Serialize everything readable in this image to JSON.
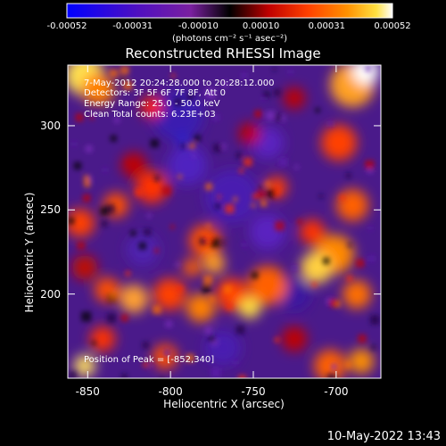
{
  "chart_data": {
    "type": "heatmap",
    "title": "Reconstructed RHESSI Image",
    "xlabel": "Heliocentric X (arcsec)",
    "ylabel": "Heliocentric Y (arcsec)",
    "xlim": [
      -862,
      -673
    ],
    "ylim": [
      150,
      336
    ],
    "x_ticks": [
      "-850",
      "-800",
      "-750",
      "-700"
    ],
    "x_tick_values": [
      -850,
      -800,
      -750,
      -700
    ],
    "y_ticks": [
      "200",
      "250",
      "300"
    ],
    "y_tick_values": [
      200,
      250,
      300
    ],
    "colorbar": {
      "min": -0.00052,
      "max": 0.00052,
      "tick_labels": [
        "-0.00052",
        "-0.00031",
        "-0.00010",
        "0.00010",
        "0.00031",
        "0.00052"
      ],
      "units": "(photons cm⁻² s⁻¹ asec⁻²)",
      "colors": [
        "#0000ff",
        "#5010c0",
        "#8020a0",
        "#000000",
        "#c00000",
        "#ff4000",
        "#ff9000",
        "#ffe040",
        "#ffffff"
      ]
    },
    "annotations": {
      "time_range": "7-May-2012 20:24:28.000 to 20:28:12.000",
      "detectors": "Detectors: 3F 5F 6F 7F 8F, Att 0",
      "energy": "Energy Range: 25.0 - 50.0 keV",
      "clean": "Clean     Total counts: 6.23E+03",
      "peak": "Position of Peak = [-852,340]"
    },
    "peak_position": [
      -852,
      340
    ],
    "total_counts": 6230
  },
  "footer": {
    "date": "10-May-2022 13:43"
  }
}
